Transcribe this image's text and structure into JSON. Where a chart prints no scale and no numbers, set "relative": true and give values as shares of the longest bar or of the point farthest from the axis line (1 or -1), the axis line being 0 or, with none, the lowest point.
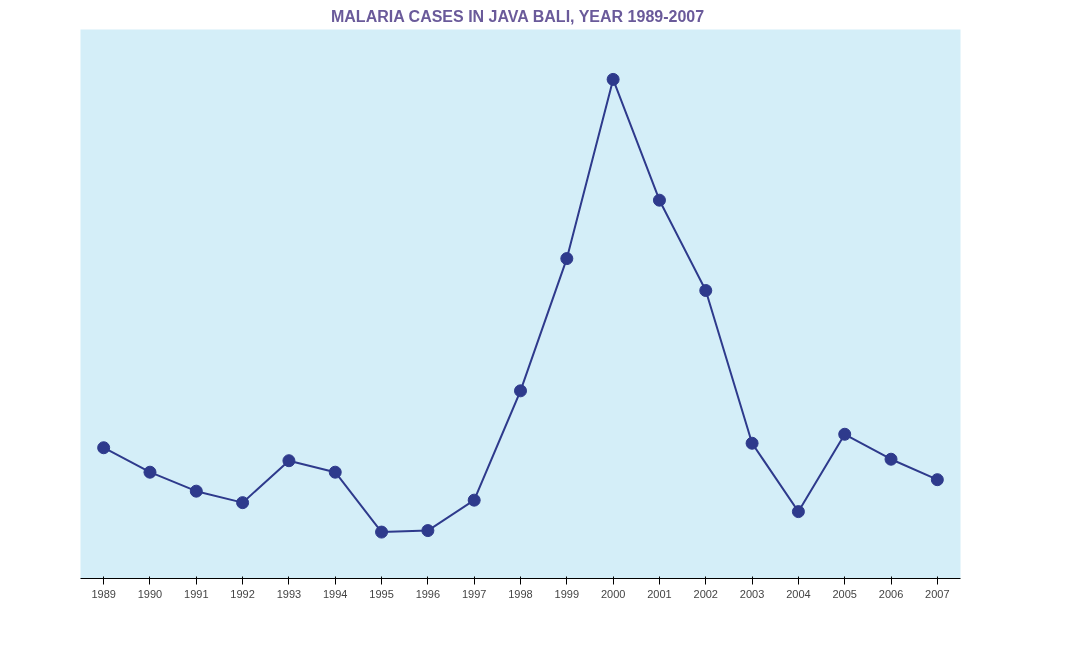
{
  "chart_data": {
    "type": "line",
    "title": "MALARIA CASES IN  JAVA BALI, YEAR 1989-2007",
    "categories": [
      "1989",
      "1990",
      "1991",
      "1992",
      "1993",
      "1994",
      "1995",
      "1996",
      "1997",
      "1998",
      "1999",
      "2000",
      "2001",
      "2002",
      "2003",
      "2004",
      "2005",
      "2006",
      "2007"
    ],
    "relative": true,
    "marker": "circle",
    "grid": false,
    "series": [
      {
        "color": "#2e3a8c",
        "values": [
          0.262,
          0.213,
          0.175,
          0.152,
          0.236,
          0.213,
          0.093,
          0.096,
          0.157,
          0.376,
          0.641,
          1,
          0.758,
          0.577,
          0.271,
          0.134,
          0.289,
          0.239,
          0.198
        ]
      }
    ]
  }
}
